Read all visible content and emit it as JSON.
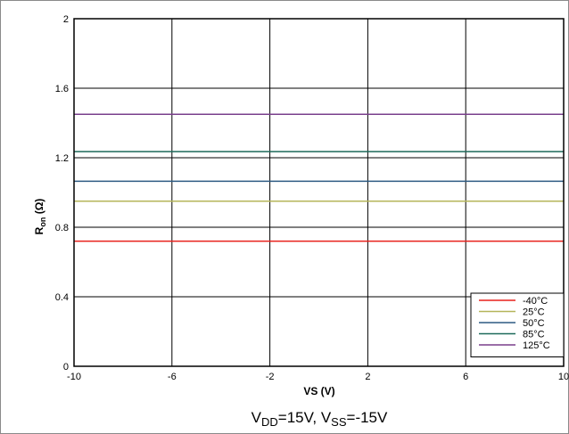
{
  "chart_data": {
    "type": "line",
    "xlabel": "VS (V)",
    "ylabel": {
      "main": "R",
      "sub": "on",
      "unit": " (Ω)"
    },
    "xlim": [
      -10,
      10
    ],
    "ylim": [
      0,
      2
    ],
    "xticks": [
      -10,
      -6,
      -2,
      2,
      6,
      10
    ],
    "yticks": [
      0,
      0.4,
      0.8,
      1.2,
      1.6,
      2
    ],
    "grid": true,
    "legend_position": "bottom-right",
    "series": [
      {
        "name": "-40°C",
        "color": "#e8211c",
        "x": [
          -10,
          10
        ],
        "y": [
          0.72,
          0.72
        ]
      },
      {
        "name": "25°C",
        "color": "#b5b55a",
        "x": [
          -10,
          10
        ],
        "y": [
          0.95,
          0.95
        ]
      },
      {
        "name": "50°C",
        "color": "#2d5a82",
        "x": [
          -10,
          10
        ],
        "y": [
          1.065,
          1.065
        ]
      },
      {
        "name": "85°C",
        "color": "#1d6a5a",
        "x": [
          -10,
          10
        ],
        "y": [
          1.235,
          1.235
        ]
      },
      {
        "name": "125°C",
        "color": "#7a3f8c",
        "x": [
          -10,
          10
        ],
        "y": [
          1.45,
          1.45
        ]
      }
    ],
    "caption": {
      "vdd_prefix": "V",
      "vdd_sub": "DD",
      "vdd_value": "=15V, ",
      "vss_prefix": "V",
      "vss_sub": "SS",
      "vss_value": "=-15V"
    }
  }
}
